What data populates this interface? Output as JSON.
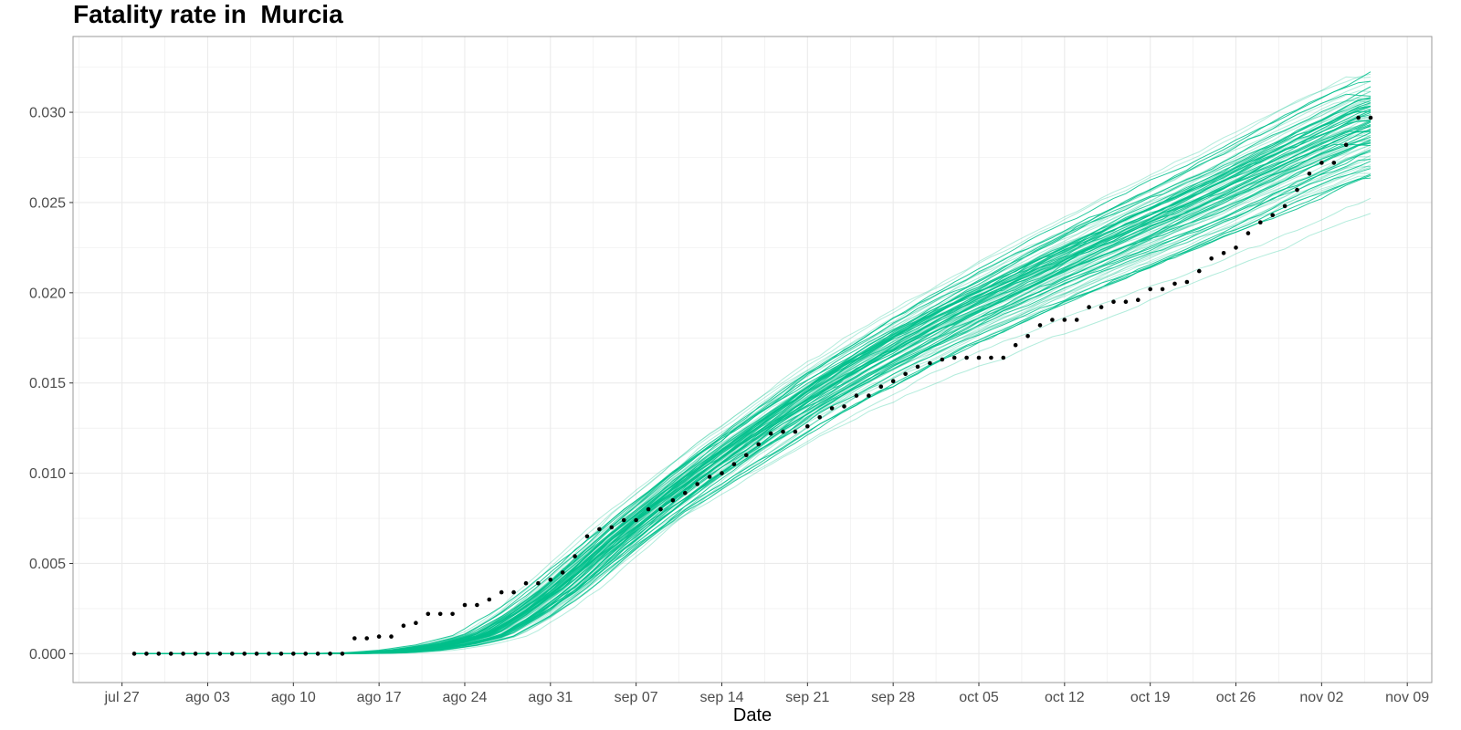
{
  "chart_data": {
    "type": "line",
    "title": "Fatality rate in  Murcia",
    "xlabel": "Date",
    "ylabel": "",
    "x_ticks": [
      "jul 27",
      "ago 03",
      "ago 10",
      "ago 17",
      "ago 24",
      "ago 31",
      "sep 07",
      "sep 14",
      "sep 21",
      "sep 28",
      "oct 05",
      "oct 12",
      "oct 19",
      "oct 26",
      "nov 02",
      "nov 09"
    ],
    "y_ticks": [
      "0.000",
      "0.005",
      "0.010",
      "0.015",
      "0.020",
      "0.025",
      "0.030"
    ],
    "xlim": [
      "2020-07-23",
      "2020-11-11"
    ],
    "ylim": [
      -0.0016,
      0.0342
    ],
    "grid": true,
    "legend": "none",
    "colors": {
      "simulations": "#00BF8C",
      "observed": "#000000",
      "grid": "#ebebeb",
      "panel_border": "#999999"
    },
    "series": [
      {
        "kind": "simulated_ensemble_median",
        "note_count": 100,
        "x": [
          "2020-07-28",
          "2020-08-13",
          "2020-08-17",
          "2020-08-20",
          "2020-08-23",
          "2020-08-26",
          "2020-08-29",
          "2020-09-01",
          "2020-09-04",
          "2020-09-07",
          "2020-09-10",
          "2020-09-14",
          "2020-09-18",
          "2020-09-22",
          "2020-09-26",
          "2020-09-30",
          "2020-10-04",
          "2020-10-08",
          "2020-10-12",
          "2020-10-16",
          "2020-10-20",
          "2020-10-24",
          "2020-10-28",
          "2020-11-01",
          "2020-11-06"
        ],
        "y": [
          0.0,
          0.0,
          5e-05,
          0.0002,
          0.0005,
          0.001,
          0.0022,
          0.0037,
          0.0055,
          0.0072,
          0.0088,
          0.0108,
          0.0127,
          0.0145,
          0.0161,
          0.0176,
          0.019,
          0.0203,
          0.0216,
          0.0228,
          0.024,
          0.0252,
          0.0265,
          0.0278,
          0.0293
        ]
      },
      {
        "kind": "observed",
        "x": [
          "2020-07-28",
          "2020-07-29",
          "2020-07-30",
          "2020-07-31",
          "2020-08-01",
          "2020-08-02",
          "2020-08-03",
          "2020-08-04",
          "2020-08-05",
          "2020-08-06",
          "2020-08-07",
          "2020-08-08",
          "2020-08-09",
          "2020-08-10",
          "2020-08-11",
          "2020-08-12",
          "2020-08-13",
          "2020-08-14",
          "2020-08-15",
          "2020-08-16",
          "2020-08-17",
          "2020-08-18",
          "2020-08-19",
          "2020-08-20",
          "2020-08-21",
          "2020-08-22",
          "2020-08-23",
          "2020-08-24",
          "2020-08-25",
          "2020-08-26",
          "2020-08-27",
          "2020-08-28",
          "2020-08-29",
          "2020-08-30",
          "2020-08-31",
          "2020-09-01",
          "2020-09-02",
          "2020-09-03",
          "2020-09-04",
          "2020-09-05",
          "2020-09-06",
          "2020-09-07",
          "2020-09-08",
          "2020-09-09",
          "2020-09-10",
          "2020-09-11",
          "2020-09-12",
          "2020-09-13",
          "2020-09-14",
          "2020-09-15",
          "2020-09-16",
          "2020-09-17",
          "2020-09-18",
          "2020-09-19",
          "2020-09-20",
          "2020-09-21",
          "2020-09-22",
          "2020-09-23",
          "2020-09-24",
          "2020-09-25",
          "2020-09-26",
          "2020-09-27",
          "2020-09-28",
          "2020-09-29",
          "2020-09-30",
          "2020-10-01",
          "2020-10-02",
          "2020-10-03",
          "2020-10-04",
          "2020-10-05",
          "2020-10-06",
          "2020-10-07",
          "2020-10-08",
          "2020-10-09",
          "2020-10-10",
          "2020-10-11",
          "2020-10-12",
          "2020-10-13",
          "2020-10-14",
          "2020-10-15",
          "2020-10-16",
          "2020-10-17",
          "2020-10-18",
          "2020-10-19",
          "2020-10-20",
          "2020-10-21",
          "2020-10-22",
          "2020-10-23",
          "2020-10-24",
          "2020-10-25",
          "2020-10-26",
          "2020-10-27",
          "2020-10-28",
          "2020-10-29",
          "2020-10-30",
          "2020-10-31",
          "2020-11-01",
          "2020-11-02",
          "2020-11-03",
          "2020-11-04",
          "2020-11-05",
          "2020-11-06"
        ],
        "y": [
          0.0,
          0.0,
          0.0,
          0.0,
          0.0,
          0.0,
          0.0,
          0.0,
          0.0,
          0.0,
          0.0,
          0.0,
          0.0,
          0.0,
          0.0,
          0.0,
          0.0,
          0.0,
          0.00085,
          0.00085,
          0.00095,
          0.00095,
          0.00155,
          0.0017,
          0.0022,
          0.0022,
          0.0022,
          0.0027,
          0.0027,
          0.003,
          0.0034,
          0.0034,
          0.0039,
          0.0039,
          0.0041,
          0.0045,
          0.0054,
          0.0065,
          0.0069,
          0.007,
          0.0074,
          0.0074,
          0.008,
          0.008,
          0.0085,
          0.0089,
          0.0094,
          0.0098,
          0.01,
          0.0105,
          0.011,
          0.0116,
          0.0122,
          0.0123,
          0.0123,
          0.0126,
          0.0131,
          0.0136,
          0.0137,
          0.0143,
          0.0143,
          0.0148,
          0.0151,
          0.0155,
          0.0159,
          0.0161,
          0.0163,
          0.0164,
          0.0164,
          0.0164,
          0.0164,
          0.0164,
          0.0171,
          0.0176,
          0.0182,
          0.0185,
          0.0185,
          0.0185,
          0.0192,
          0.0192,
          0.0195,
          0.0195,
          0.0196,
          0.0202,
          0.0202,
          0.0205,
          0.0206,
          0.0212,
          0.0219,
          0.0222,
          0.0225,
          0.0233,
          0.0239,
          0.0243,
          0.0248,
          0.0257,
          0.0266,
          0.0272,
          0.0272,
          0.0282,
          0.0297,
          0.0297
        ]
      }
    ]
  }
}
